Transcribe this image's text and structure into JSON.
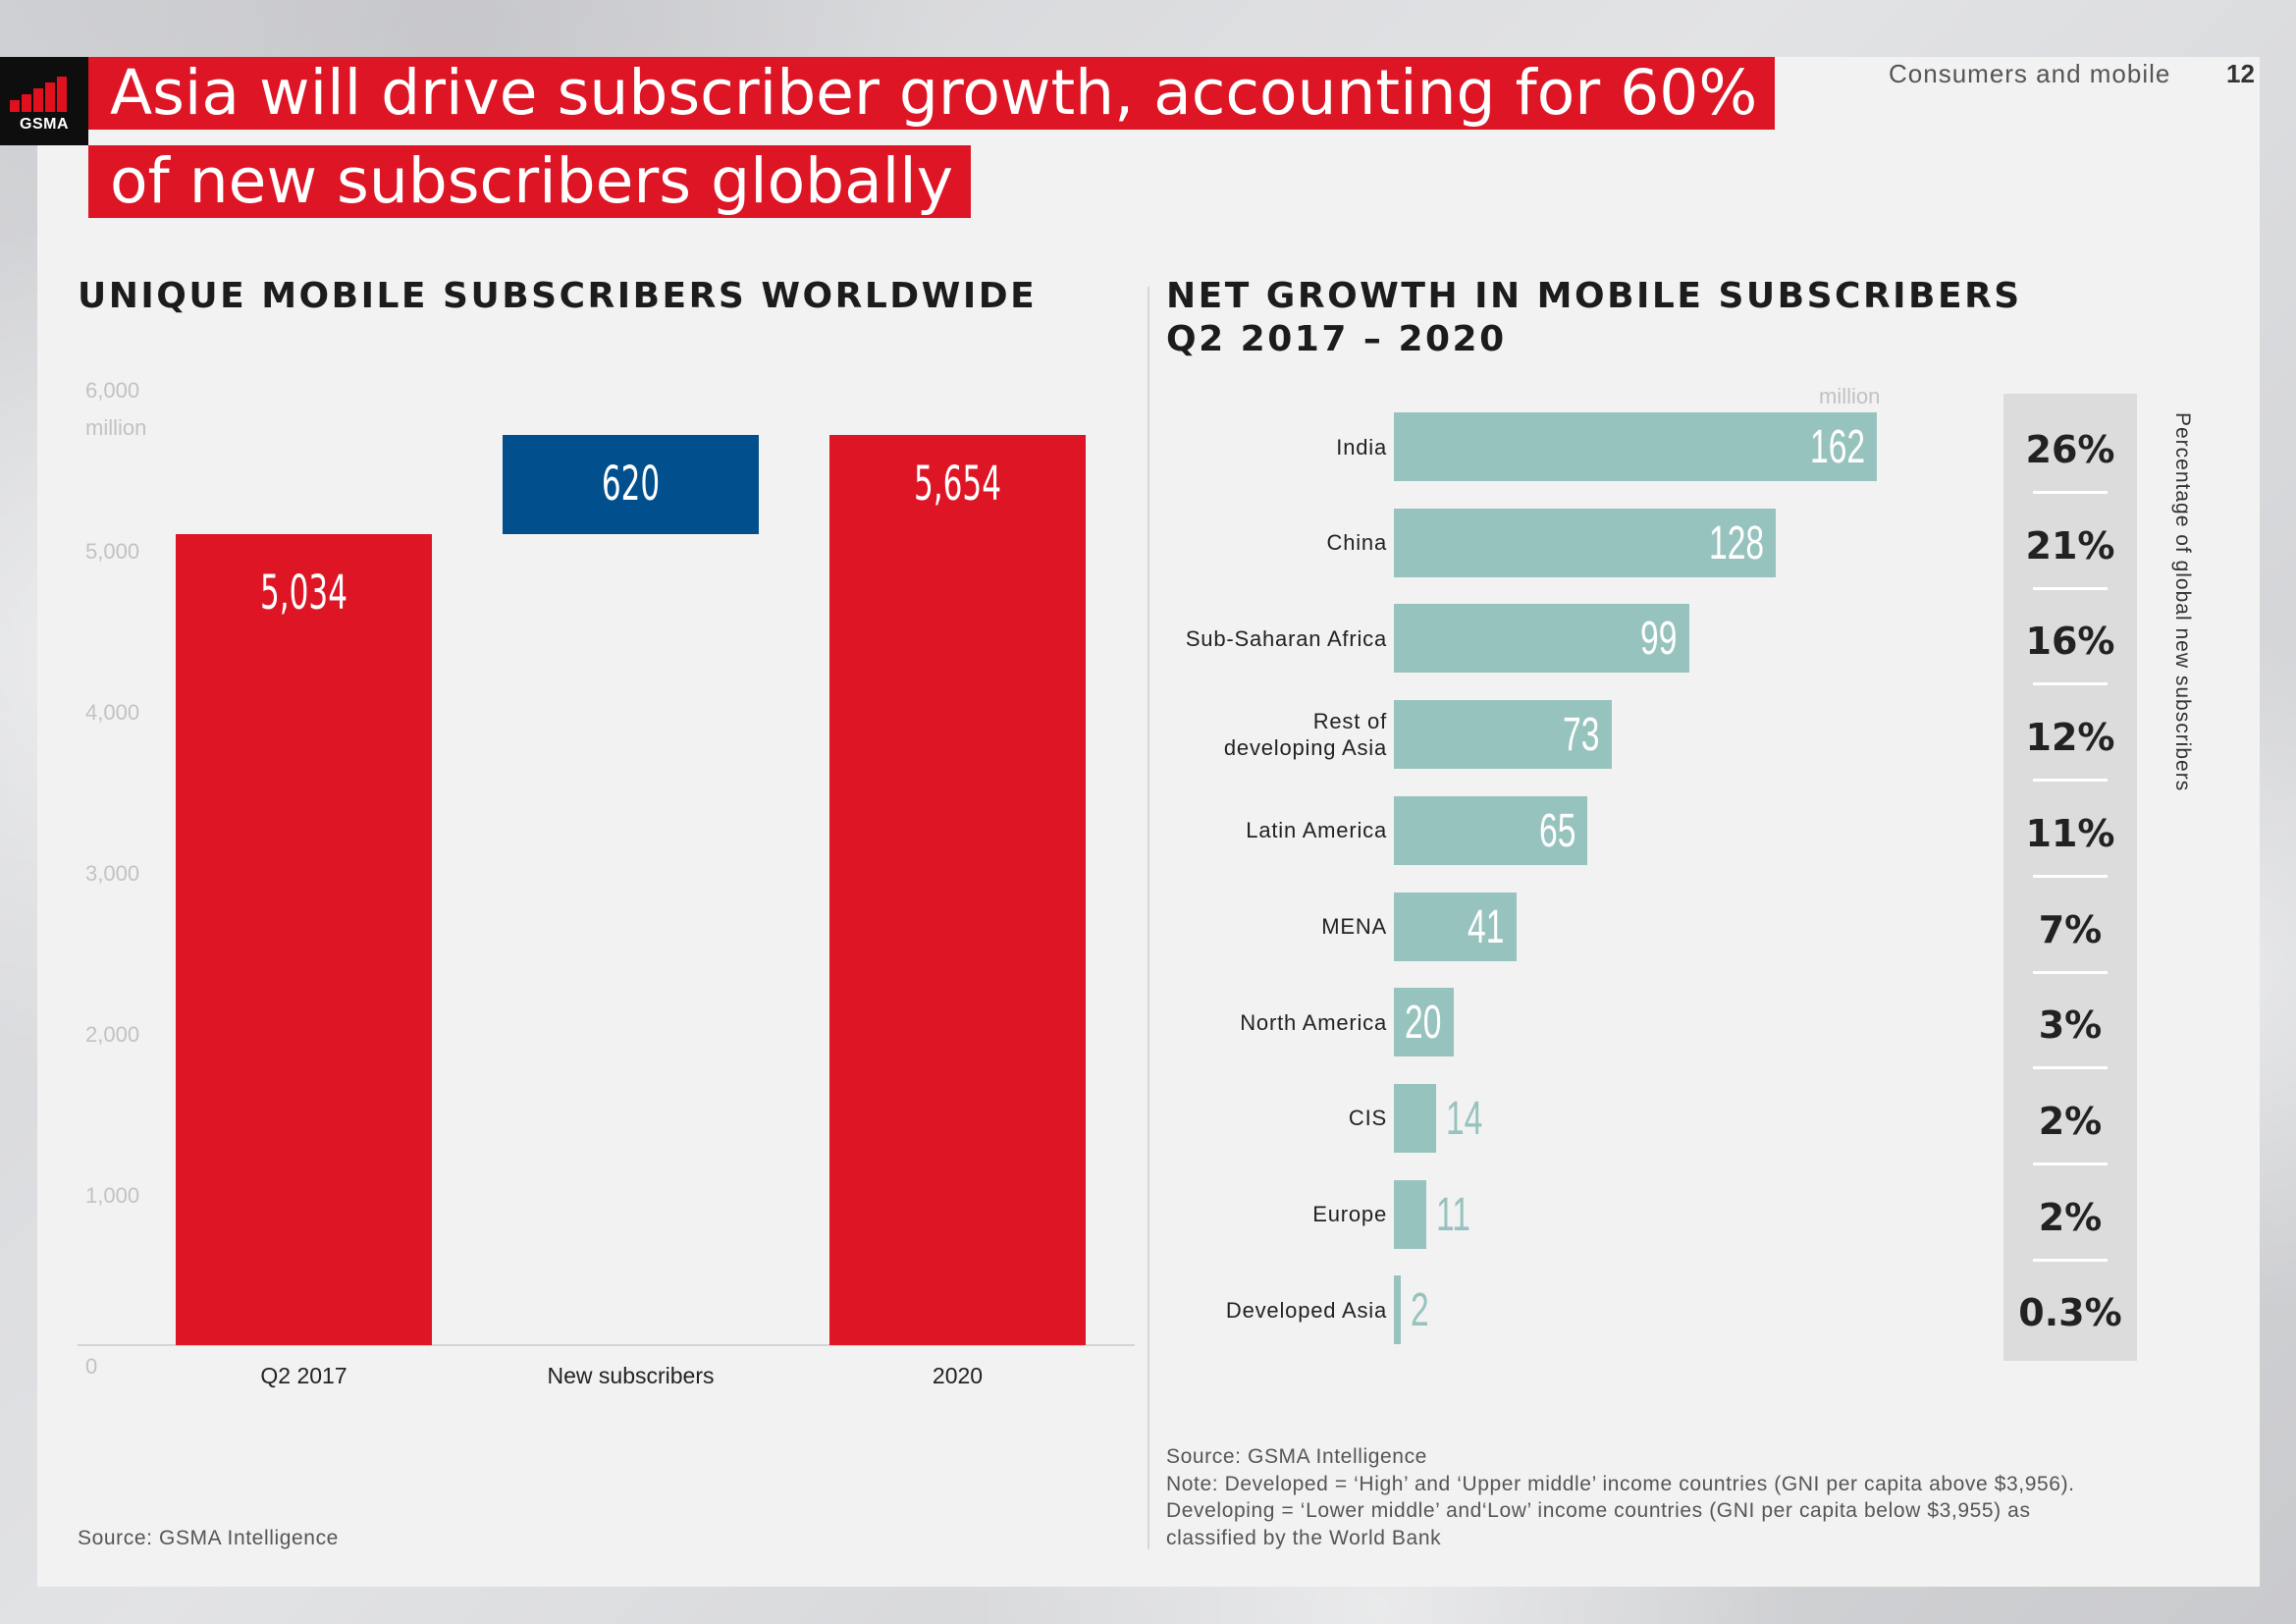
{
  "header": {
    "logo_text": "GSMA",
    "headline_line1": "Asia will drive subscriber growth, accounting for 60%",
    "headline_line2": "of new subscribers globally",
    "section": "Consumers and mobile",
    "page_number": "12"
  },
  "colors": {
    "brand_red": "#dd1524",
    "blue": "#014f8c",
    "teal": "#97c3bf"
  },
  "left_chart": {
    "title": "UNIQUE MOBILE SUBSCRIBERS WORLDWIDE",
    "unit": "million",
    "source": "Source: GSMA Intelligence"
  },
  "right_chart": {
    "title_line1": "NET GROWTH IN MOBILE SUBSCRIBERS",
    "title_line2": "Q2 2017 – 2020",
    "unit": "million",
    "side_label": "Percentage of global new subscribers",
    "source_lines": [
      "Source: GSMA Intelligence",
      "Note: Developed = ‘High’ and ‘Upper middle’ income countries (GNI per capita above $3,956).",
      "Developing = ‘Lower middle’ and‘Low’ income countries (GNI per capita below $3,955) as",
      "classified by the World Bank"
    ]
  },
  "chart_data": [
    {
      "type": "bar",
      "title": "UNIQUE MOBILE SUBSCRIBERS WORLDWIDE",
      "categories": [
        "Q2 2017",
        "New subscribers",
        "2020"
      ],
      "values": [
        5034,
        620,
        5654
      ],
      "value_labels": [
        "5,034",
        "620",
        "5,654"
      ],
      "bar_base": [
        0,
        5034,
        0
      ],
      "bar_colors": [
        "#dd1524",
        "#014f8c",
        "#dd1524"
      ],
      "ylabel": "million",
      "ylim": [
        0,
        6000
      ],
      "yticks": [
        0,
        1000,
        2000,
        3000,
        4000,
        5000,
        6000
      ],
      "ytick_labels": [
        "0",
        "1,000",
        "2,000",
        "3,000",
        "4,000",
        "5,000",
        "6,000"
      ],
      "grid": false
    },
    {
      "type": "bar",
      "orientation": "horizontal",
      "title": "NET GROWTH IN MOBILE SUBSCRIBERS Q2 2017 – 2020",
      "categories": [
        "India",
        "China",
        "Sub-Saharan Africa",
        "Rest of developing Asia",
        "Latin America",
        "MENA",
        "North America",
        "CIS",
        "Europe",
        "Developed Asia"
      ],
      "category_lines": [
        [
          "India"
        ],
        [
          "China"
        ],
        [
          "Sub-Saharan Africa"
        ],
        [
          "Rest of",
          "developing Asia"
        ],
        [
          "Latin America"
        ],
        [
          "MENA"
        ],
        [
          "North America"
        ],
        [
          "CIS"
        ],
        [
          "Europe"
        ],
        [
          "Developed Asia"
        ]
      ],
      "values": [
        162,
        128,
        99,
        73,
        65,
        41,
        20,
        14,
        11,
        2
      ],
      "percentages": [
        "26%",
        "21%",
        "16%",
        "12%",
        "11%",
        "7%",
        "3%",
        "2%",
        "2%",
        "0.3%"
      ],
      "xlabel": "million",
      "xlim": [
        0,
        162
      ],
      "bar_color": "#97c3bf",
      "grid": false
    }
  ]
}
